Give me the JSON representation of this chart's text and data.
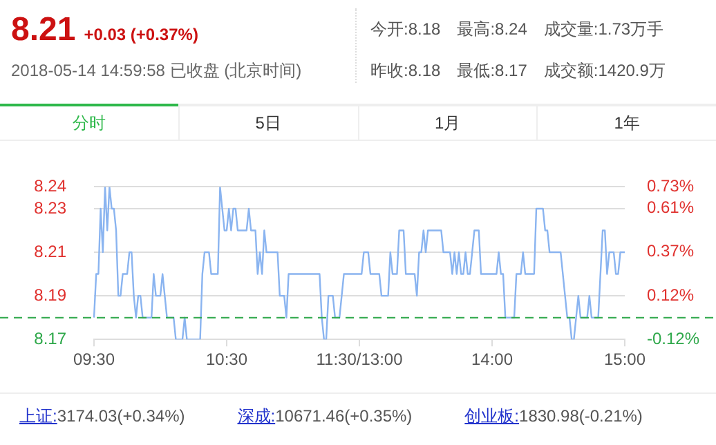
{
  "chart_data": {
    "type": "line",
    "title": "8.21",
    "subtitle": "+0.03 (+0.37%)",
    "annotations": [
      "2018-05-14 14:59:58 已收盘 (北京时间)",
      "今开:8.18",
      "最高:8.24",
      "成交量:1.73万手",
      "昨收:8.18",
      "最低:8.17",
      "成交额:1420.9万",
      "分时",
      "5日",
      "1月",
      "1年",
      "上证:3174.03(+0.34%)",
      "深成:10671.46(+0.35%)",
      "创业板:1830.98(-0.21%)"
    ],
    "categories": [
      "09:30",
      null,
      null,
      null,
      null,
      null,
      null,
      null,
      null,
      null,
      null,
      null,
      null,
      null,
      null,
      null,
      null,
      null,
      null,
      null,
      null,
      null,
      null,
      null,
      null,
      null,
      null,
      null,
      null,
      null,
      null,
      null,
      null,
      null,
      null,
      null,
      null,
      null,
      null,
      null,
      null,
      null,
      null,
      null,
      null,
      null,
      null,
      null,
      null,
      null,
      null,
      null,
      null,
      null,
      null,
      null,
      null,
      null,
      null,
      null,
      "10:30",
      null,
      null,
      null,
      null,
      null,
      null,
      null,
      null,
      null,
      null,
      null,
      null,
      null,
      null,
      null,
      null,
      null,
      null,
      null,
      null,
      null,
      null,
      null,
      null,
      null,
      null,
      null,
      null,
      null,
      null,
      null,
      null,
      null,
      null,
      null,
      null,
      null,
      null,
      null,
      null,
      null,
      null,
      null,
      null,
      null,
      null,
      null,
      null,
      null,
      null,
      null,
      null,
      null,
      null,
      null,
      null,
      null,
      null,
      null,
      "11:30/13:00",
      null,
      null,
      null,
      null,
      null,
      null,
      null,
      null,
      null,
      null,
      null,
      null,
      null,
      null,
      null,
      null,
      null,
      null,
      null,
      null,
      null,
      null,
      null,
      null,
      null,
      null,
      null,
      null,
      null,
      null,
      null,
      null,
      null,
      null,
      null,
      null,
      null,
      null,
      null,
      null,
      null,
      null,
      null,
      null,
      null,
      null,
      null,
      null,
      null,
      null,
      null,
      null,
      null,
      null,
      null,
      null,
      null,
      null,
      null,
      "14:00",
      null,
      null,
      null,
      null,
      null,
      null,
      null,
      null,
      null,
      null,
      null,
      null,
      null,
      null,
      null,
      null,
      null,
      null,
      null,
      null,
      null,
      null,
      null,
      null,
      null,
      null,
      null,
      null,
      null,
      null,
      null,
      null,
      null,
      null,
      null,
      null,
      null,
      null,
      null,
      null,
      null,
      null,
      null,
      null,
      null,
      null,
      null,
      null,
      null,
      null,
      null,
      null,
      null,
      null,
      null,
      null,
      null,
      null,
      null,
      "15:00"
    ],
    "ylim": [
      8.17,
      8.24
    ],
    "yticks": [
      8.17,
      8.19,
      8.21,
      8.23,
      8.24
    ],
    "y2lim": [
      -0.12,
      0.73
    ],
    "y2ticks": [
      {
        "value": -0.12,
        "label": "-0.12%"
      },
      {
        "value": 0.12,
        "label": "0.12%"
      },
      {
        "value": 0.37,
        "label": "0.37%"
      },
      {
        "value": 0.61,
        "label": "0.61%"
      },
      {
        "value": 0.73,
        "label": "0.73%"
      }
    ],
    "grid": "y",
    "legend": false,
    "marker": "none",
    "line_style": "solid",
    "ref_lines": [
      {
        "axis": "y",
        "value": 8.18,
        "color": "#2ea84a",
        "line_style": "dashed"
      }
    ],
    "series": [
      {
        "color": "#8ab4f0",
        "values": [
          8.18,
          8.2,
          8.2,
          8.23,
          8.21,
          8.24,
          8.22,
          8.24,
          8.23,
          8.23,
          8.22,
          8.19,
          8.19,
          8.2,
          8.2,
          8.2,
          8.21,
          8.21,
          8.19,
          8.18,
          8.19,
          8.19,
          8.18,
          8.18,
          8.18,
          8.18,
          8.18,
          8.2,
          8.19,
          8.19,
          8.19,
          8.2,
          8.19,
          8.18,
          8.18,
          8.18,
          8.18,
          8.17,
          8.17,
          8.17,
          8.17,
          8.18,
          8.17,
          8.17,
          8.17,
          8.17,
          8.17,
          8.17,
          8.17,
          8.2,
          8.21,
          8.21,
          8.21,
          8.2,
          8.2,
          8.2,
          8.2,
          8.24,
          8.23,
          8.22,
          8.22,
          8.23,
          8.22,
          8.23,
          8.23,
          8.22,
          8.22,
          8.22,
          8.22,
          8.22,
          8.23,
          8.22,
          8.22,
          8.22,
          8.2,
          8.21,
          8.2,
          8.22,
          8.21,
          8.21,
          8.21,
          8.21,
          8.21,
          8.21,
          8.19,
          8.19,
          8.19,
          8.18,
          8.2,
          8.2,
          8.2,
          8.2,
          8.2,
          8.2,
          8.2,
          8.2,
          8.2,
          8.2,
          8.2,
          8.2,
          8.2,
          8.2,
          8.2,
          8.18,
          8.17,
          8.17,
          8.19,
          8.19,
          8.19,
          8.18,
          8.18,
          8.18,
          8.19,
          8.2,
          8.2,
          8.2,
          8.2,
          8.2,
          8.2,
          8.2,
          8.2,
          8.2,
          8.21,
          8.21,
          8.21,
          8.2,
          8.2,
          8.2,
          8.2,
          8.2,
          8.19,
          8.19,
          8.19,
          8.19,
          8.21,
          8.2,
          8.2,
          8.2,
          8.22,
          8.22,
          8.22,
          8.2,
          8.2,
          8.2,
          8.2,
          8.2,
          8.19,
          8.21,
          8.21,
          8.22,
          8.21,
          8.22,
          8.22,
          8.22,
          8.22,
          8.22,
          8.22,
          8.22,
          8.21,
          8.21,
          8.21,
          8.21,
          8.2,
          8.21,
          8.2,
          8.21,
          8.2,
          8.2,
          8.21,
          8.2,
          8.2,
          8.21,
          8.22,
          8.22,
          8.22,
          8.2,
          8.2,
          8.2,
          8.2,
          8.2,
          8.2,
          8.2,
          8.2,
          8.21,
          8.2,
          8.2,
          8.18,
          8.18,
          8.18,
          8.18,
          8.18,
          8.2,
          8.2,
          8.2,
          8.21,
          8.2,
          8.2,
          8.2,
          8.2,
          8.2,
          8.23,
          8.23,
          8.23,
          8.23,
          8.22,
          8.22,
          8.21,
          8.21,
          8.21,
          8.21,
          8.21,
          8.21,
          8.2,
          8.19,
          8.18,
          8.18,
          8.17,
          8.17,
          8.18,
          8.19,
          8.18,
          8.18,
          8.18,
          8.18,
          8.19,
          8.18,
          8.18,
          8.18,
          8.18,
          8.2,
          8.22,
          8.22,
          8.2,
          8.21,
          8.21,
          8.21,
          8.2,
          8.2,
          8.21,
          8.21,
          8.21
        ]
      }
    ]
  }
}
